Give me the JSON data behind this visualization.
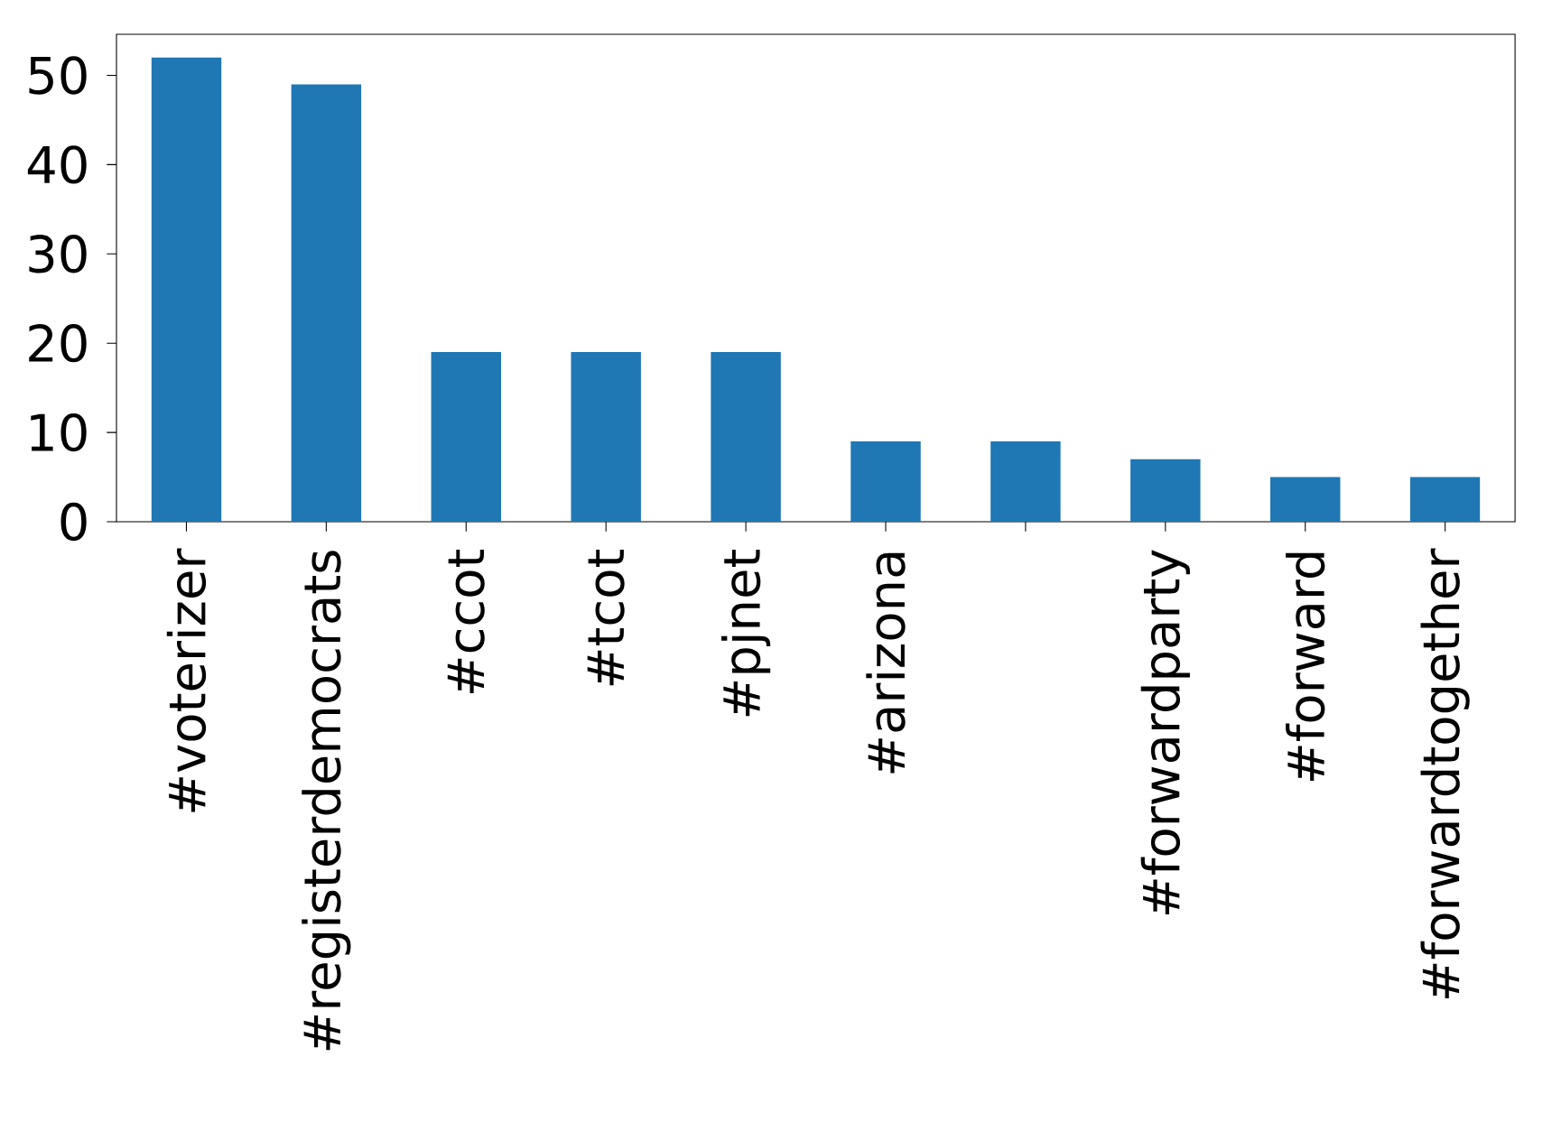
{
  "chart_data": {
    "type": "bar",
    "categories": [
      "#voterizer",
      "#registerdemocrats",
      "#ccot",
      "#tcot",
      "#pjnet",
      "#arizona",
      null,
      "#forwardparty",
      "#forward",
      "#forwardtogether"
    ],
    "values": [
      52,
      49,
      19,
      19,
      19,
      9,
      9,
      7,
      5,
      5
    ],
    "color": "#1f77b4",
    "ylim": [
      0,
      54.6
    ],
    "yticks": [
      0,
      10,
      20,
      30,
      40,
      50
    ],
    "grid": false
  }
}
